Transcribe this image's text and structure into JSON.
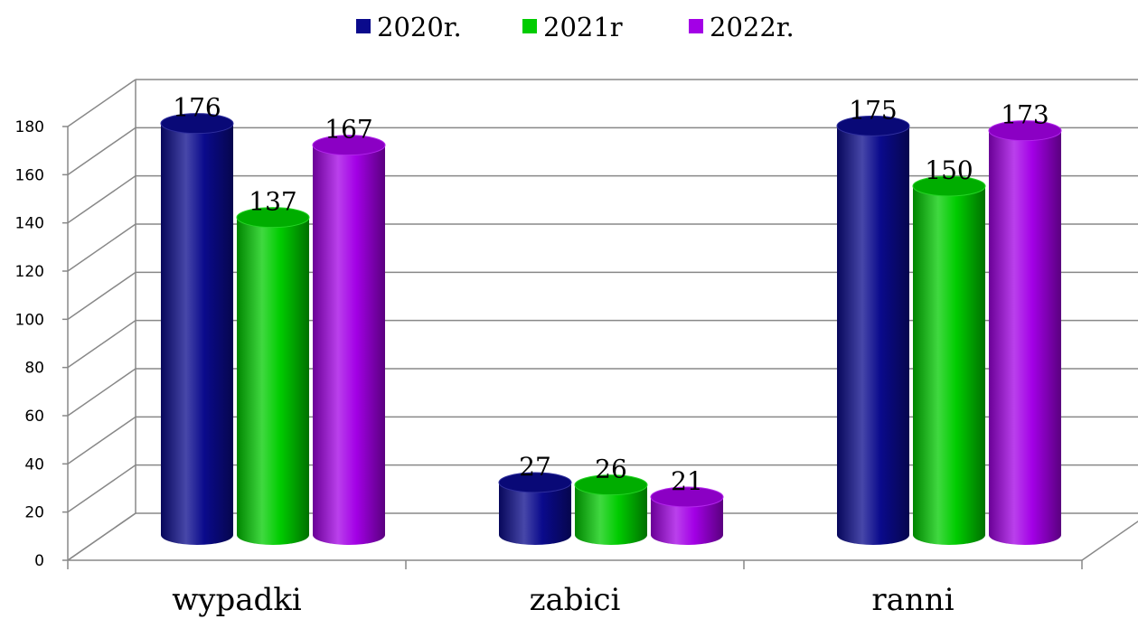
{
  "chart_data": {
    "type": "bar",
    "categories": [
      "wypadki",
      "zabici",
      "ranni"
    ],
    "series": [
      {
        "name": "2020r.",
        "values": [
          176,
          27,
          175
        ],
        "color": "#0a0a8c"
      },
      {
        "name": "2021r",
        "values": [
          137,
          26,
          150
        ],
        "color": "#00cc00"
      },
      {
        "name": "2022r.",
        "values": [
          167,
          21,
          173
        ],
        "color": "#a300e6"
      }
    ],
    "yticks": [
      0,
      20,
      40,
      60,
      80,
      100,
      120,
      140,
      160,
      180
    ],
    "ylim": [
      0,
      180
    ],
    "grid": true,
    "legend_position": "top",
    "style": "3d-cylinder"
  }
}
